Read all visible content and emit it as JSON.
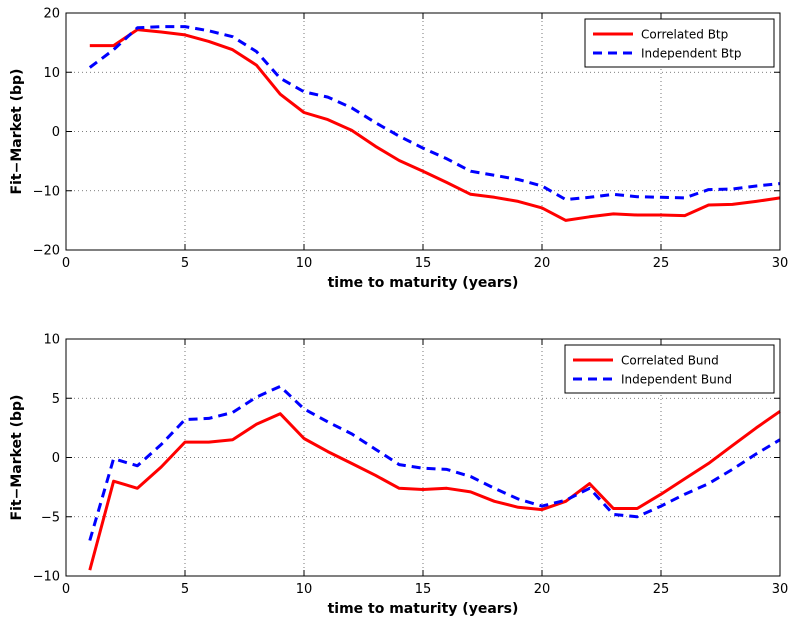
{
  "chart_data": [
    {
      "type": "line",
      "title": "",
      "xlabel": "time to maturity (years)",
      "ylabel": "Fit−Market (bp)",
      "xlim": [
        0,
        30
      ],
      "ylim": [
        -20,
        20
      ],
      "xticks": [
        0,
        5,
        10,
        15,
        20,
        25,
        30
      ],
      "yticks": [
        -20,
        -10,
        0,
        10,
        20
      ],
      "xtick_labels": [
        "0",
        "5",
        "10",
        "15",
        "20",
        "25",
        "30"
      ],
      "ytick_labels": [
        "−20",
        "−10",
        "0",
        "10",
        "20"
      ],
      "grid": true,
      "legend_position": "top-right",
      "x": [
        1,
        2,
        3,
        4,
        5,
        6,
        7,
        8,
        9,
        10,
        11,
        12,
        13,
        14,
        15,
        16,
        17,
        18,
        19,
        20,
        21,
        22,
        23,
        24,
        25,
        26,
        27,
        28,
        29,
        30
      ],
      "series": [
        {
          "name": "Correlated Btp",
          "color": "#ff0000",
          "style": "solid",
          "values": [
            14.5,
            14.5,
            17.2,
            16.8,
            16.3,
            15.2,
            13.8,
            11.2,
            6.3,
            3.2,
            2.0,
            0.2,
            -2.5,
            -4.9,
            -6.7,
            -8.6,
            -10.6,
            -11.1,
            -11.8,
            -12.9,
            -15.0,
            -14.4,
            -13.9,
            -14.1,
            -14.1,
            -14.2,
            -12.4,
            -12.3,
            -11.8,
            -11.2
          ]
        },
        {
          "name": "Independent Btp",
          "color": "#0000ff",
          "style": "dashed",
          "values": [
            10.8,
            13.8,
            17.5,
            17.7,
            17.7,
            17.0,
            16.0,
            13.5,
            9.0,
            6.7,
            5.8,
            4.0,
            1.5,
            -0.8,
            -2.8,
            -4.6,
            -6.7,
            -7.4,
            -8.1,
            -9.2,
            -11.5,
            -11.1,
            -10.6,
            -11.0,
            -11.1,
            -11.2,
            -9.8,
            -9.7,
            -9.2,
            -8.8
          ]
        }
      ]
    },
    {
      "type": "line",
      "title": "",
      "xlabel": "time to maturity (years)",
      "ylabel": "Fit−Market (bp)",
      "xlim": [
        0,
        30
      ],
      "ylim": [
        -10,
        10
      ],
      "xticks": [
        0,
        5,
        10,
        15,
        20,
        25,
        30
      ],
      "yticks": [
        -10,
        -5,
        0,
        5,
        10
      ],
      "xtick_labels": [
        "0",
        "5",
        "10",
        "15",
        "20",
        "25",
        "30"
      ],
      "ytick_labels": [
        "−10",
        "−5",
        "0",
        "5",
        "10"
      ],
      "grid": true,
      "legend_position": "top-right",
      "x": [
        1,
        2,
        3,
        4,
        5,
        6,
        7,
        8,
        9,
        10,
        11,
        12,
        13,
        14,
        15,
        16,
        17,
        18,
        19,
        20,
        21,
        22,
        23,
        24,
        25,
        26,
        27,
        28,
        29,
        30
      ],
      "series": [
        {
          "name": "Correlated Bund",
          "color": "#ff0000",
          "style": "solid",
          "values": [
            -9.5,
            -2.0,
            -2.6,
            -0.8,
            1.3,
            1.3,
            1.5,
            2.8,
            3.7,
            1.6,
            0.5,
            -0.5,
            -1.5,
            -2.6,
            -2.7,
            -2.6,
            -2.9,
            -3.7,
            -4.2,
            -4.4,
            -3.7,
            -2.2,
            -4.3,
            -4.3,
            -3.1,
            -1.8,
            -0.5,
            1.0,
            2.5,
            3.9
          ]
        },
        {
          "name": "Independent Bund",
          "color": "#0000ff",
          "style": "dashed",
          "values": [
            -7.0,
            -0.1,
            -0.7,
            1.1,
            3.2,
            3.3,
            3.8,
            5.1,
            6.0,
            4.1,
            3.0,
            2.0,
            0.7,
            -0.6,
            -0.9,
            -1.0,
            -1.6,
            -2.6,
            -3.5,
            -4.1,
            -3.6,
            -2.6,
            -4.8,
            -5.0,
            -4.1,
            -3.1,
            -2.2,
            -1.0,
            0.3,
            1.5
          ]
        }
      ]
    }
  ]
}
